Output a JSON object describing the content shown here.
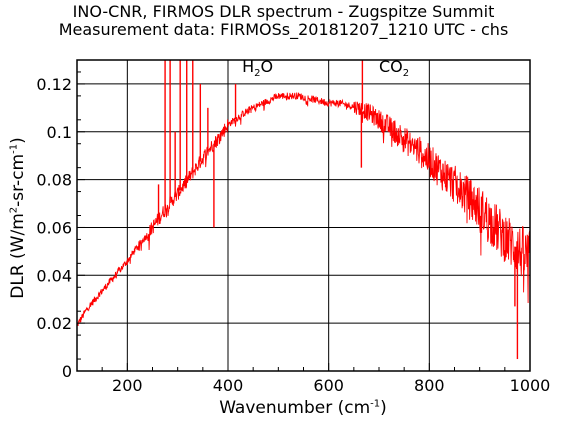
{
  "chart_data": {
    "type": "line",
    "title": "INO-CNR, FIRMOS DLR spectrum - Zugspitze Summit",
    "subtitle": "Measurement data: FIRMOSs_20181207_1210 UTC - chs",
    "xlabel": {
      "pre": "Wavenumber (cm",
      "sup": "-1",
      "post": ")"
    },
    "ylabel": {
      "p1": "DLR (W/m",
      "sup1": "2",
      "p2": "-sr-cm",
      "sup2": "-1",
      "p3": ")"
    },
    "xlim": [
      100,
      1000
    ],
    "ylim": [
      0,
      0.13
    ],
    "xticks": [
      200,
      400,
      600,
      800,
      1000
    ],
    "yticks": [
      0,
      0.02,
      0.04,
      0.06,
      0.08,
      0.1,
      0.12
    ],
    "ytick_labels": [
      "0",
      "0.02",
      "0.04",
      "0.06",
      "0.08",
      "0.1",
      "0.12"
    ],
    "grid": true,
    "series_color": "#ff0000",
    "annotations": [
      {
        "base": "H",
        "sub": "2",
        "rest": "O",
        "x": 428,
        "y": 0.124
      },
      {
        "base": "CO",
        "sub": "2",
        "rest": "",
        "x": 700,
        "y": 0.124
      }
    ],
    "series": [
      {
        "x": [
          100,
          120,
          140,
          160,
          180,
          200,
          220,
          240,
          260,
          280,
          300,
          320,
          340,
          360,
          380,
          400,
          420,
          440,
          460,
          480,
          500,
          520,
          540,
          560,
          580,
          600,
          620,
          640,
          660,
          680,
          700,
          720,
          740,
          760,
          780,
          800,
          820,
          840,
          860,
          880,
          900,
          920,
          940,
          960,
          980,
          1000
        ],
        "y": [
          0.019,
          0.026,
          0.031,
          0.036,
          0.041,
          0.046,
          0.052,
          0.057,
          0.063,
          0.069,
          0.074,
          0.08,
          0.086,
          0.092,
          0.097,
          0.103,
          0.106,
          0.109,
          0.111,
          0.113,
          0.115,
          0.115,
          0.115,
          0.114,
          0.113,
          0.112,
          0.112,
          0.111,
          0.11,
          0.108,
          0.105,
          0.102,
          0.099,
          0.095,
          0.092,
          0.088,
          0.084,
          0.08,
          0.076,
          0.072,
          0.068,
          0.063,
          0.058,
          0.054,
          0.05,
          0.047
        ],
        "spikes": [
          {
            "x": 262,
            "y": 0.078
          },
          {
            "x": 275,
            "y": 0.13
          },
          {
            "x": 285,
            "y": 0.13
          },
          {
            "x": 295,
            "y": 0.1
          },
          {
            "x": 305,
            "y": 0.13
          },
          {
            "x": 318,
            "y": 0.13
          },
          {
            "x": 330,
            "y": 0.13
          },
          {
            "x": 345,
            "y": 0.12
          },
          {
            "x": 360,
            "y": 0.11
          },
          {
            "x": 372,
            "y": 0.06
          },
          {
            "x": 415,
            "y": 0.12
          },
          {
            "x": 667,
            "y": 0.13
          },
          {
            "x": 665,
            "y": 0.085
          },
          {
            "x": 970,
            "y": 0.027
          },
          {
            "x": 975,
            "y": 0.005
          }
        ]
      }
    ]
  }
}
